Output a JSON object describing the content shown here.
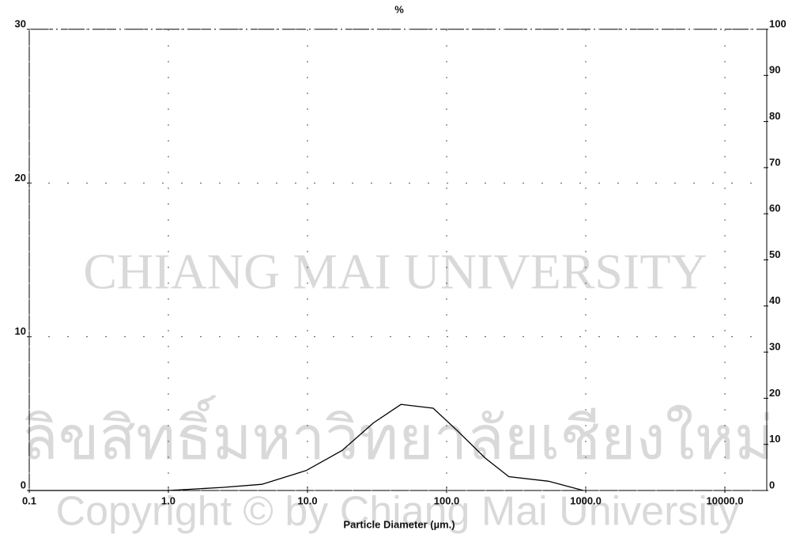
{
  "chart_data": {
    "type": "line",
    "title": "%",
    "x_label": "Particle Diameter (µm.)",
    "log_x": true,
    "grid": true,
    "xlim": [
      0.1,
      20000
    ],
    "xticks": [
      {
        "value": 0.1,
        "label": "0.1"
      },
      {
        "value": 1,
        "label": "1.0"
      },
      {
        "value": 10,
        "label": "10.0"
      },
      {
        "value": 100,
        "label": "100.0"
      },
      {
        "value": 1000,
        "label": "1000.0"
      },
      {
        "value": 10000,
        "label": "10000.0"
      }
    ],
    "ylim": [
      0,
      30
    ],
    "yticks": [
      0,
      10,
      20,
      30
    ],
    "y2lim": [
      0,
      100
    ],
    "y2ticks": [
      0,
      10,
      20,
      30,
      40,
      50,
      60,
      70,
      80,
      90,
      100
    ],
    "x": [
      0.1,
      1,
      2.45,
      4.7,
      9.8,
      17.7,
      29.8,
      47,
      80,
      119,
      190,
      280,
      540,
      960
    ],
    "series": [
      {
        "color": "#000000",
        "values": [
          0,
          0,
          0.2,
          0.4,
          1.3,
          2.6,
          4.4,
          5.6,
          5.35,
          3.9,
          2.1,
          0.9,
          0.6,
          0
        ]
      }
    ]
  },
  "watermark": {
    "arc": "CHIANG MAI UNIVERSITY",
    "thai": "ลิขสิทธิ์มหาวิทยาลัยเชียงใหม่",
    "copyright": "Copyright © by Chiang Mai University"
  }
}
